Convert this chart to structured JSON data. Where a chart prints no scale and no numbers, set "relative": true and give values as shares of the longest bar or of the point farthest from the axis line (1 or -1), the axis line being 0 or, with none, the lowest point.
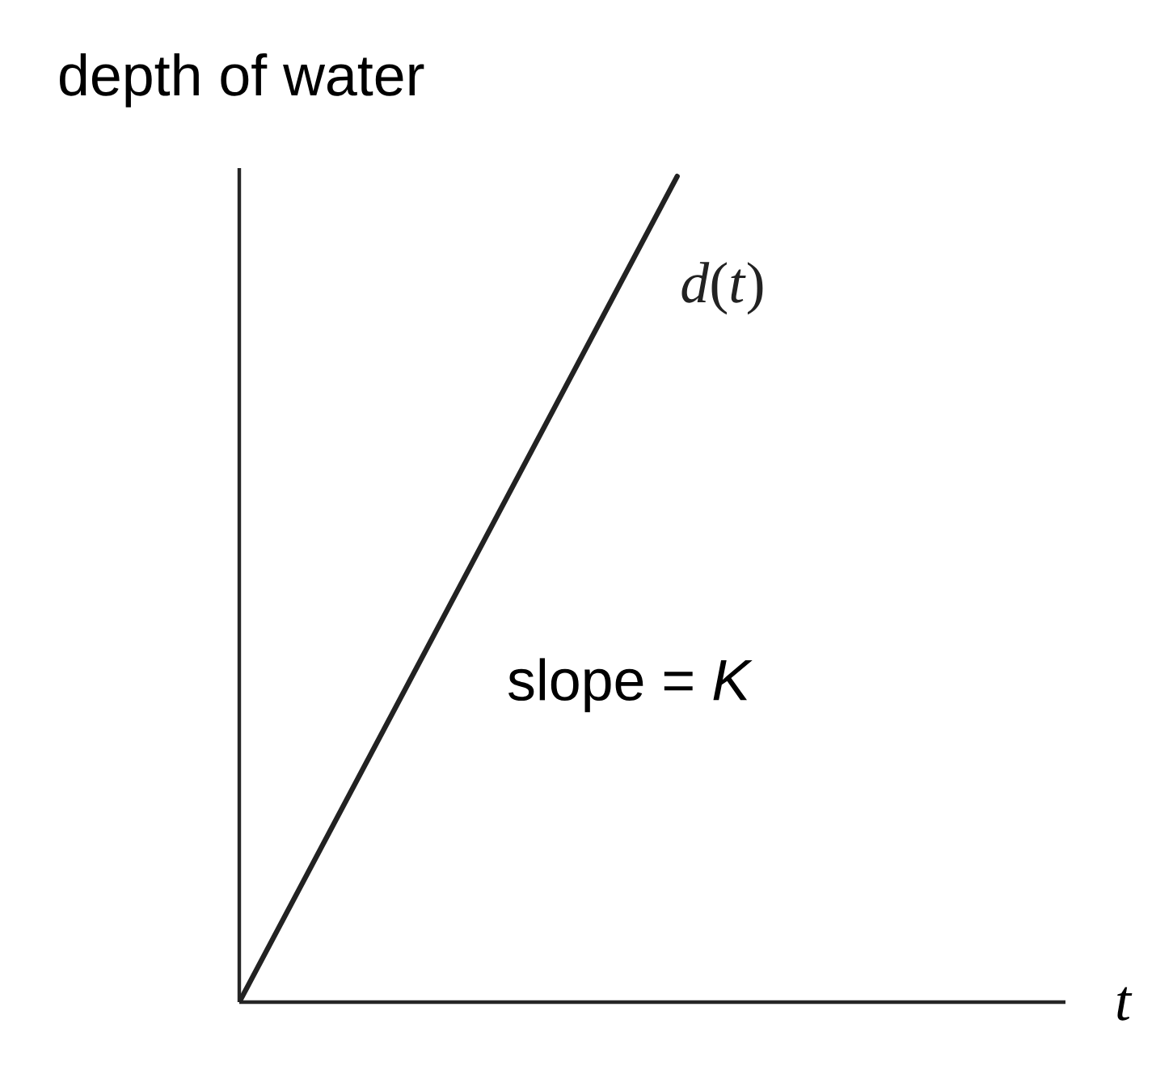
{
  "chart_data": {
    "type": "line",
    "relative": true,
    "ylabel": "depth of water",
    "xlabel": "t",
    "categories": [
      null,
      null
    ],
    "series": [
      {
        "name": "*d*(*t*)",
        "color": "#222222",
        "values": [
          0,
          1
        ]
      }
    ],
    "annotations": [
      "slope = *K*"
    ],
    "marker": "none",
    "line_style": "solid",
    "legend": false
  }
}
